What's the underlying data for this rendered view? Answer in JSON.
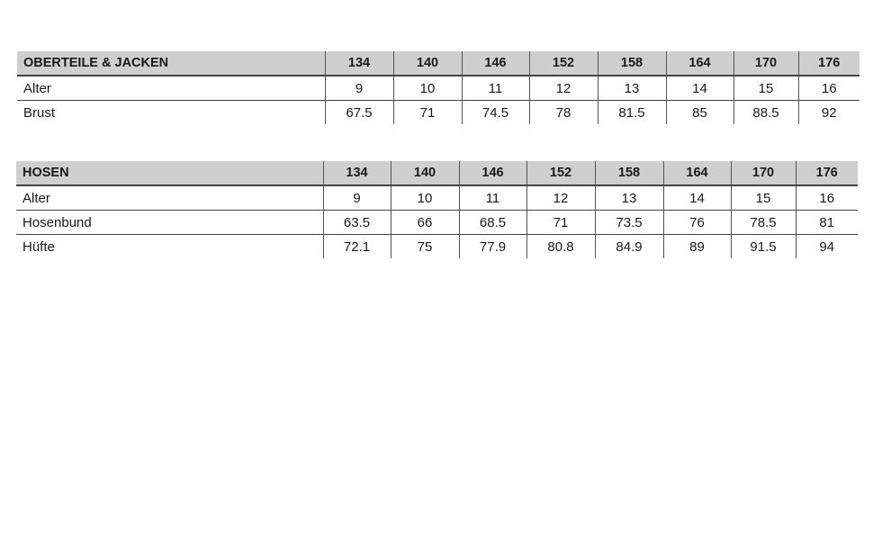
{
  "tables": [
    {
      "title": "OBERTEILE & JACKEN",
      "sizes": [
        "134",
        "140",
        "146",
        "152",
        "158",
        "164",
        "170",
        "176"
      ],
      "rows": [
        {
          "label": "Alter",
          "values": [
            "9",
            "10",
            "11",
            "12",
            "13",
            "14",
            "15",
            "16"
          ]
        },
        {
          "label": "Brust",
          "values": [
            "67.5",
            "71",
            "74.5",
            "78",
            "81.5",
            "85",
            "88.5",
            "92"
          ]
        }
      ]
    },
    {
      "title": "HOSEN",
      "sizes": [
        "134",
        "140",
        "146",
        "152",
        "158",
        "164",
        "170",
        "176"
      ],
      "rows": [
        {
          "label": "Alter",
          "values": [
            "9",
            "10",
            "11",
            "12",
            "13",
            "14",
            "15",
            "16"
          ]
        },
        {
          "label": "Hosenbund",
          "values": [
            "63.5",
            "66",
            "68.5",
            "71",
            "73.5",
            "76",
            "78.5",
            "81"
          ]
        },
        {
          "label": "Hüfte",
          "values": [
            "72.1",
            "75",
            "77.9",
            "80.8",
            "84.9",
            "89",
            "91.5",
            "94"
          ]
        }
      ]
    }
  ]
}
